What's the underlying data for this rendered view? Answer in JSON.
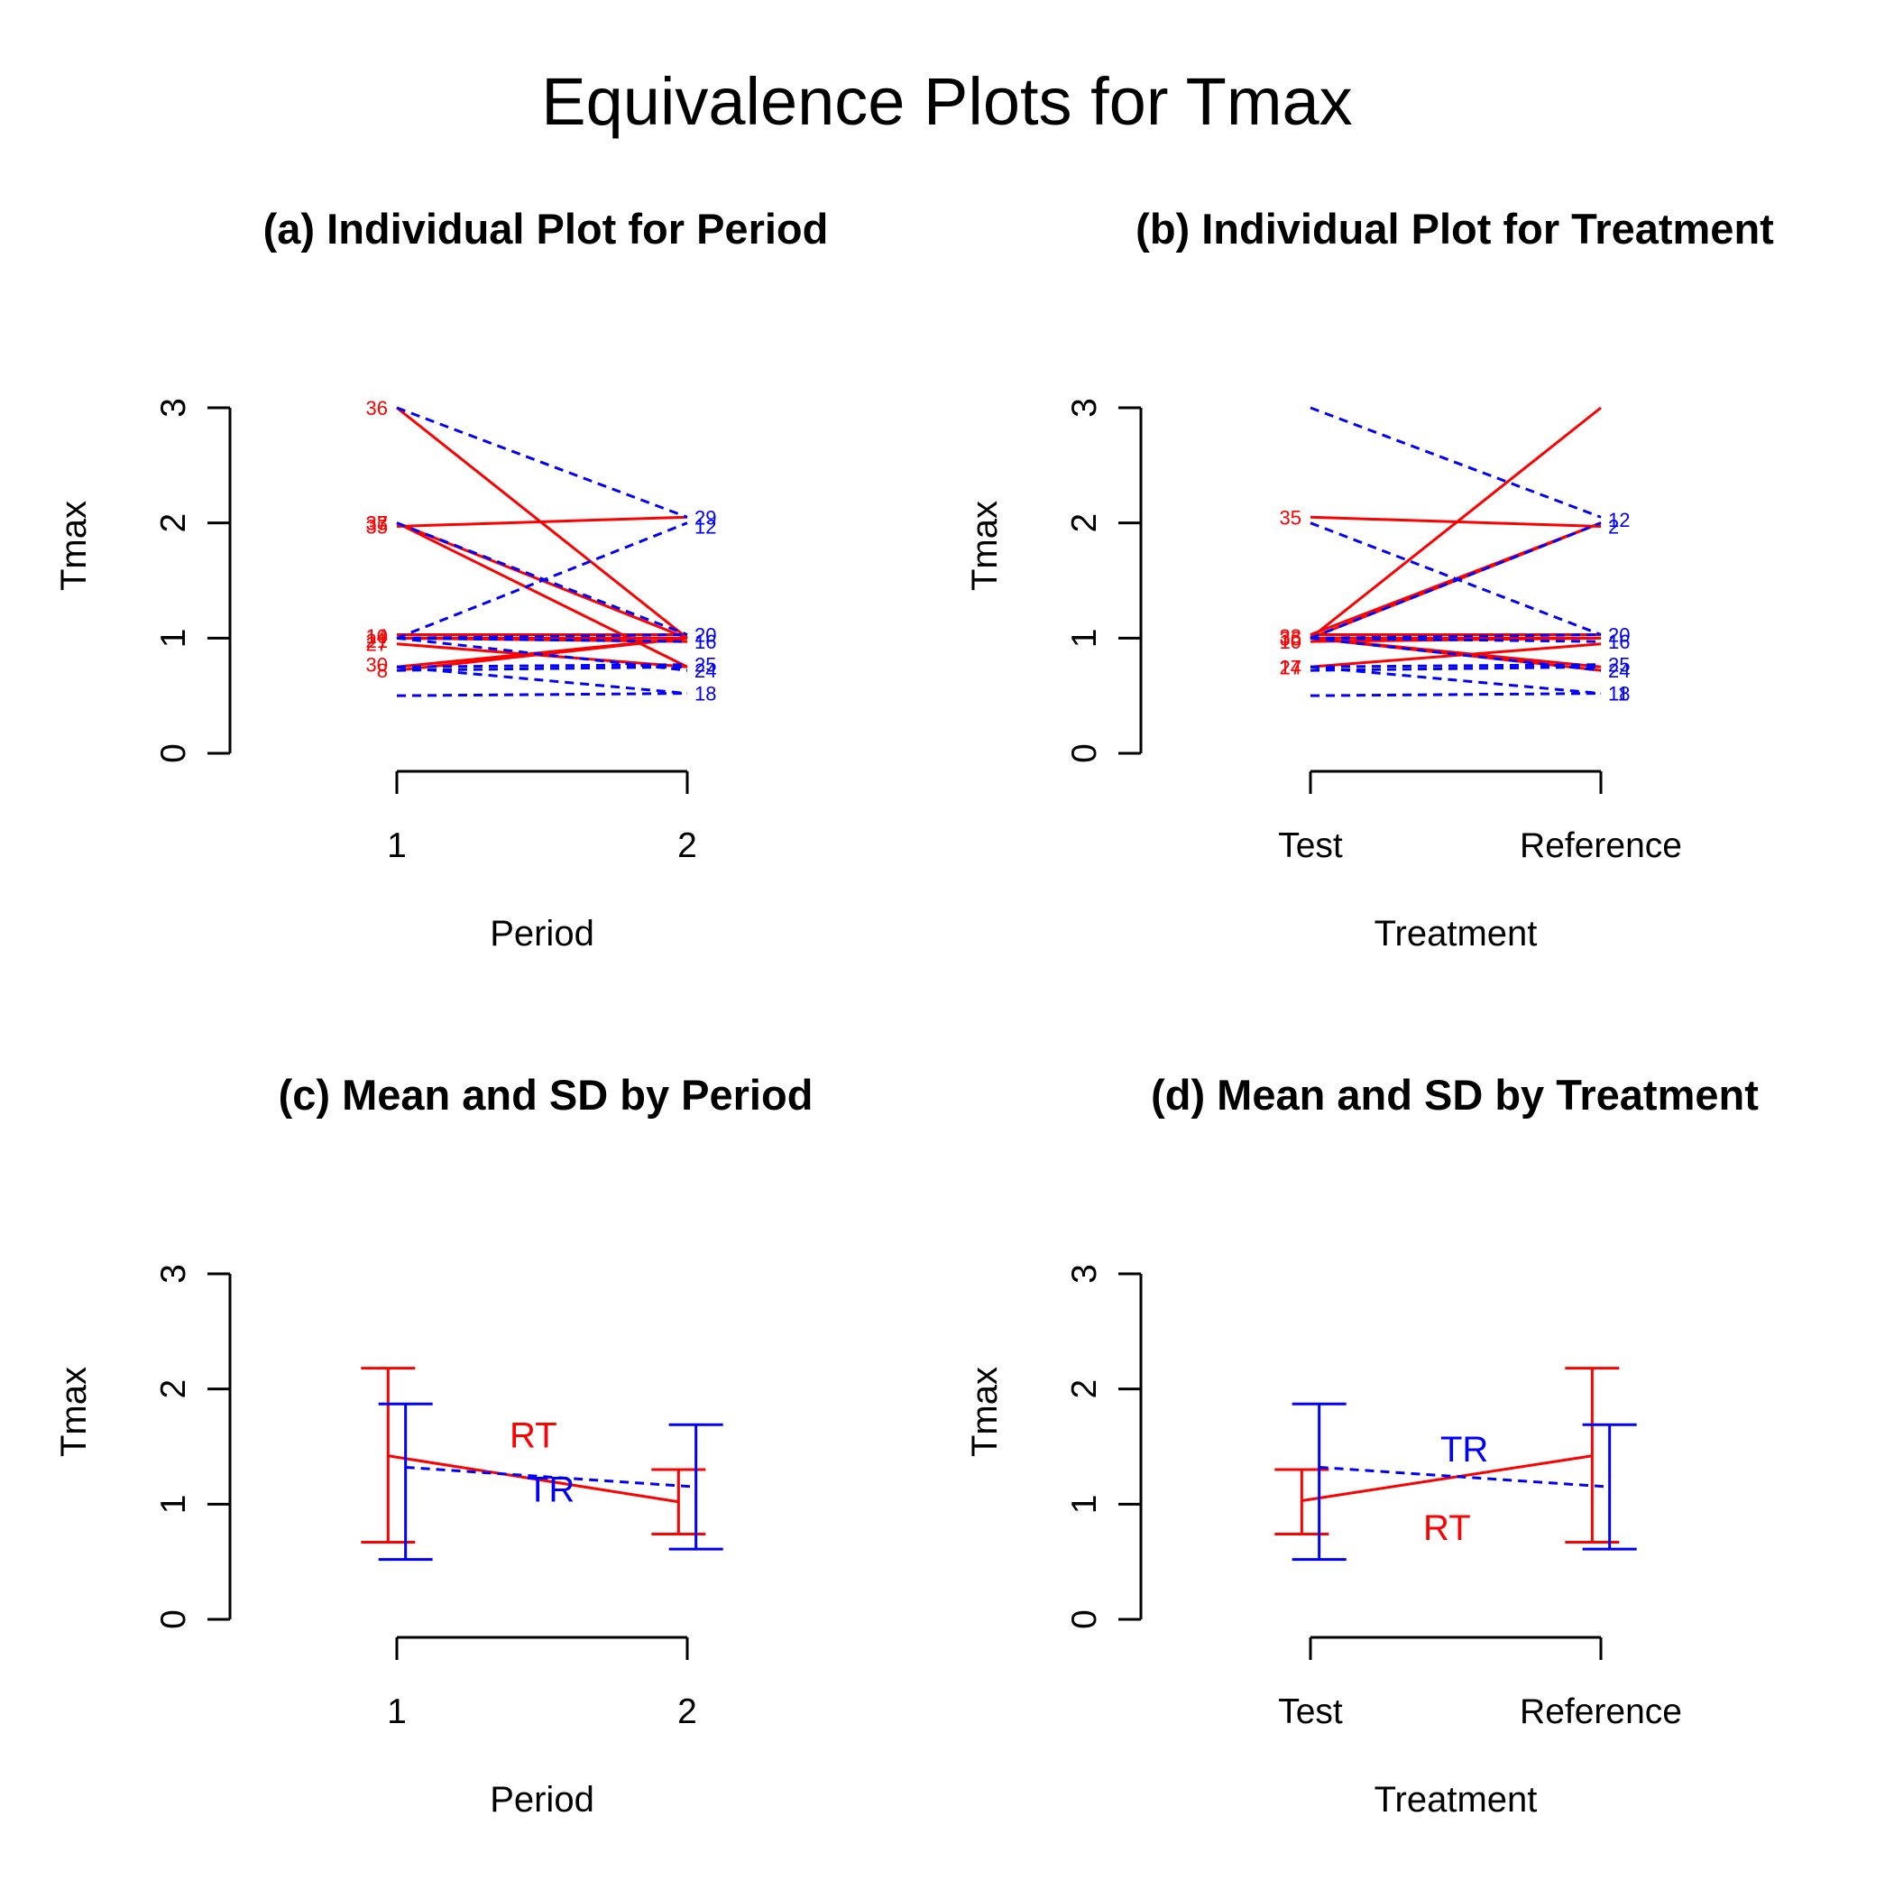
{
  "title": "Equivalence Plots for Tmax",
  "colors": {
    "RT": "#ff0000",
    "TR": "#0000ff",
    "axis": "#000000"
  },
  "chart_data": [
    {
      "id": "a",
      "type": "line",
      "title": "(a) Individual Plot for Period",
      "xlabel": "Period",
      "ylabel": "Tmax",
      "categories": [
        "1",
        "2"
      ],
      "ylim": [
        0,
        3
      ],
      "yticks": [
        "0",
        "1",
        "2",
        "3"
      ],
      "series": [
        {
          "group": "RT",
          "subject": "36",
          "values": [
            3.0,
            1.0
          ]
        },
        {
          "group": "RT",
          "subject": "33",
          "values": [
            2.0,
            1.0
          ]
        },
        {
          "group": "RT",
          "subject": "37",
          "values": [
            1.97,
            2.05
          ]
        },
        {
          "group": "RT",
          "subject": "35",
          "values": [
            2.0,
            0.75
          ]
        },
        {
          "group": "RT",
          "subject": "10",
          "values": [
            1.0,
            1.0
          ]
        },
        {
          "group": "RT",
          "subject": "14",
          "values": [
            1.03,
            1.03
          ]
        },
        {
          "group": "RT",
          "subject": "21",
          "values": [
            1.0,
            0.97
          ]
        },
        {
          "group": "RT",
          "subject": "27",
          "values": [
            0.95,
            0.75
          ]
        },
        {
          "group": "RT",
          "subject": "30",
          "values": [
            0.75,
            1.0
          ]
        },
        {
          "group": "RT",
          "subject": "8",
          "values": [
            0.72,
            1.0
          ]
        },
        {
          "group": "TR",
          "subject": "29",
          "values": [
            3.0,
            2.05
          ]
        },
        {
          "group": "TR",
          "subject": "12",
          "values": [
            2.0,
            1.03
          ]
        },
        {
          "group": "TR",
          "subject": "2",
          "values": [
            1.0,
            2.0
          ]
        },
        {
          "group": "TR",
          "subject": "20",
          "values": [
            1.0,
            1.03
          ]
        },
        {
          "group": "TR",
          "subject": "25",
          "values": [
            0.75,
            0.77
          ]
        },
        {
          "group": "TR",
          "subject": "24",
          "values": [
            1.0,
            0.72
          ]
        },
        {
          "group": "TR",
          "subject": "5",
          "values": [
            0.72,
            0.75
          ]
        },
        {
          "group": "TR",
          "subject": "18",
          "values": [
            0.5,
            0.52
          ]
        },
        {
          "group": "TR",
          "subject": "11",
          "values": [
            0.75,
            0.52
          ]
        },
        {
          "group": "TR",
          "subject": "16",
          "values": [
            1.0,
            0.97
          ]
        }
      ],
      "left_labels": [
        {
          "text": "36",
          "y": 3.0,
          "group": "RT"
        },
        {
          "text": "33",
          "y": 2.0,
          "group": "RT"
        },
        {
          "text": "37",
          "y": 2.0,
          "group": "RT"
        },
        {
          "text": "35",
          "y": 1.97,
          "group": "RT"
        },
        {
          "text": "10",
          "y": 1.02,
          "group": "RT"
        },
        {
          "text": "14",
          "y": 1.02,
          "group": "RT"
        },
        {
          "text": "21",
          "y": 0.98,
          "group": "RT"
        },
        {
          "text": "27",
          "y": 0.95,
          "group": "RT"
        },
        {
          "text": "30",
          "y": 0.77,
          "group": "RT"
        },
        {
          "text": "8",
          "y": 0.72,
          "group": "RT"
        }
      ],
      "right_labels": [
        {
          "text": "29",
          "y": 2.05,
          "group": "TR"
        },
        {
          "text": "12",
          "y": 1.97,
          "group": "TR"
        },
        {
          "text": "20",
          "y": 1.03,
          "group": "TR"
        },
        {
          "text": "16",
          "y": 0.97,
          "group": "TR"
        },
        {
          "text": "25",
          "y": 0.77,
          "group": "TR"
        },
        {
          "text": "24",
          "y": 0.72,
          "group": "TR"
        },
        {
          "text": "18",
          "y": 0.52,
          "group": "TR"
        }
      ]
    },
    {
      "id": "b",
      "type": "line",
      "title": "(b) Individual Plot for Treatment",
      "xlabel": "Treatment",
      "ylabel": "Tmax",
      "categories": [
        "Test",
        "Reference"
      ],
      "ylim": [
        0,
        3
      ],
      "yticks": [
        "0",
        "1",
        "2",
        "3"
      ],
      "series": [
        {
          "group": "RT",
          "subject": "36",
          "values": [
            1.0,
            3.0
          ]
        },
        {
          "group": "RT",
          "subject": "33",
          "values": [
            1.0,
            2.0
          ]
        },
        {
          "group": "RT",
          "subject": "37",
          "values": [
            1.03,
            2.0
          ]
        },
        {
          "group": "RT",
          "subject": "35",
          "values": [
            2.05,
            1.97
          ]
        },
        {
          "group": "RT",
          "subject": "10",
          "values": [
            1.0,
            1.0
          ]
        },
        {
          "group": "RT",
          "subject": "14",
          "values": [
            1.03,
            1.03
          ]
        },
        {
          "group": "RT",
          "subject": "21",
          "values": [
            0.97,
            1.0
          ]
        },
        {
          "group": "RT",
          "subject": "27",
          "values": [
            0.75,
            0.95
          ]
        },
        {
          "group": "RT",
          "subject": "30",
          "values": [
            1.0,
            0.75
          ]
        },
        {
          "group": "RT",
          "subject": "8",
          "values": [
            1.0,
            0.72
          ]
        },
        {
          "group": "TR",
          "subject": "29",
          "values": [
            3.0,
            2.05
          ]
        },
        {
          "group": "TR",
          "subject": "12",
          "values": [
            2.0,
            1.03
          ]
        },
        {
          "group": "TR",
          "subject": "2",
          "values": [
            1.0,
            2.0
          ]
        },
        {
          "group": "TR",
          "subject": "20",
          "values": [
            1.0,
            1.03
          ]
        },
        {
          "group": "TR",
          "subject": "25",
          "values": [
            0.75,
            0.77
          ]
        },
        {
          "group": "TR",
          "subject": "24",
          "values": [
            1.0,
            0.72
          ]
        },
        {
          "group": "TR",
          "subject": "5",
          "values": [
            0.72,
            0.75
          ]
        },
        {
          "group": "TR",
          "subject": "18",
          "values": [
            0.5,
            0.52
          ]
        },
        {
          "group": "TR",
          "subject": "11",
          "values": [
            0.75,
            0.52
          ]
        },
        {
          "group": "TR",
          "subject": "16",
          "values": [
            1.0,
            0.97
          ]
        }
      ],
      "left_labels": [
        {
          "text": "35",
          "y": 2.05,
          "group": "RT"
        },
        {
          "text": "33",
          "y": 1.02,
          "group": "RT"
        },
        {
          "text": "36",
          "y": 1.0,
          "group": "RT"
        },
        {
          "text": "10",
          "y": 0.97,
          "group": "RT"
        },
        {
          "text": "14",
          "y": 0.75,
          "group": "RT"
        },
        {
          "text": "27",
          "y": 0.75,
          "group": "RT"
        }
      ],
      "right_labels": [
        {
          "text": "12",
          "y": 2.03,
          "group": "TR"
        },
        {
          "text": "2",
          "y": 1.97,
          "group": "TR"
        },
        {
          "text": "20",
          "y": 1.03,
          "group": "TR"
        },
        {
          "text": "16",
          "y": 0.97,
          "group": "TR"
        },
        {
          "text": "25",
          "y": 0.77,
          "group": "TR"
        },
        {
          "text": "24",
          "y": 0.72,
          "group": "TR"
        },
        {
          "text": "18",
          "y": 0.52,
          "group": "TR"
        },
        {
          "text": "11",
          "y": 0.52,
          "group": "TR"
        }
      ]
    },
    {
      "id": "c",
      "type": "line",
      "title": "(c) Mean and SD by Period",
      "xlabel": "Period",
      "ylabel": "Tmax",
      "categories": [
        "1",
        "2"
      ],
      "ylim": [
        0,
        3
      ],
      "yticks": [
        "0",
        "1",
        "2",
        "3"
      ],
      "series": [
        {
          "name": "RT",
          "mean": [
            1.42,
            1.02
          ],
          "lower": [
            0.67,
            0.74
          ],
          "upper": [
            2.18,
            1.3
          ],
          "offset": -0.03
        },
        {
          "name": "TR",
          "mean": [
            1.32,
            1.15
          ],
          "lower": [
            0.52,
            0.61
          ],
          "upper": [
            1.87,
            1.69
          ],
          "offset": 0.03
        }
      ],
      "labels": [
        {
          "text": "RT",
          "x": 1.47,
          "y": 1.6,
          "group": "RT"
        },
        {
          "text": "TR",
          "x": 1.53,
          "y": 1.13,
          "group": "TR"
        }
      ]
    },
    {
      "id": "d",
      "type": "line",
      "title": "(d) Mean and SD by Treatment",
      "xlabel": "Treatment",
      "ylabel": "Tmax",
      "categories": [
        "Test",
        "Reference"
      ],
      "ylim": [
        0,
        3
      ],
      "yticks": [
        "0",
        "1",
        "2",
        "3"
      ],
      "series": [
        {
          "name": "RT",
          "mean": [
            1.03,
            1.42
          ],
          "lower": [
            0.74,
            0.67
          ],
          "upper": [
            1.3,
            2.18
          ],
          "offset": -0.03
        },
        {
          "name": "TR",
          "mean": [
            1.32,
            1.15
          ],
          "lower": [
            0.52,
            0.61
          ],
          "upper": [
            1.87,
            1.69
          ],
          "offset": 0.03
        }
      ],
      "labels": [
        {
          "text": "TR",
          "x": 1.53,
          "y": 1.48,
          "group": "TR"
        },
        {
          "text": "RT",
          "x": 1.47,
          "y": 0.8,
          "group": "RT"
        }
      ]
    }
  ]
}
